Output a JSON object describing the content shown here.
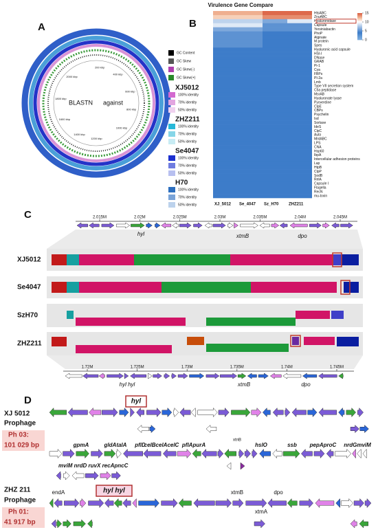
{
  "panels": {
    "a": "A",
    "b": "B",
    "c": "C",
    "d": "D"
  },
  "panel_a": {
    "center_labels": [
      "BLASTN",
      "against"
    ],
    "ring_labels": [
      "2000 kbp",
      "200 kbp",
      "400 kbp",
      "1800 kbp",
      "1600 kbp",
      "600 kbp",
      "800 kbp",
      "1400 kbp",
      "1200 kbp",
      "1000 kbp"
    ],
    "legend": {
      "gc": [
        "GC Content",
        "GC Skew",
        "GC Skew(-)",
        "GC Skew(+)"
      ],
      "strains": [
        {
          "name": "XJ5012",
          "levels": [
            "100% identity",
            "70% identity",
            "50% identity"
          ],
          "colors": [
            "#d36ad0",
            "#e2a6e0",
            "#f0d2ef"
          ]
        },
        {
          "name": "ZHZ211",
          "levels": [
            "100% identity",
            "70% identity",
            "50% identity"
          ],
          "colors": [
            "#28b8d8",
            "#86d6e8",
            "#c8ecf4"
          ]
        },
        {
          "name": "Se4047",
          "levels": [
            "100% identity",
            "70% identity",
            "50% identity"
          ],
          "colors": [
            "#1b2fcf",
            "#6f7ce0",
            "#b8c0f0"
          ]
        },
        {
          "name": "H70",
          "levels": [
            "100% identity",
            "70% identity",
            "50% identity"
          ],
          "colors": [
            "#2d6fbf",
            "#7aa4d8",
            "#bcd2ec"
          ]
        }
      ]
    }
  },
  "panel_b": {
    "title": "Virulence Gene Compare",
    "columns": [
      "XJ_5012",
      "Se_4047",
      "Sz_H70",
      "ZHZ211"
    ],
    "genes": [
      "HtsABC",
      "ZnuABC",
      "Hyaluronidase",
      "Capsule",
      "Yersiniabactin",
      "PhoP",
      "Alginate",
      "M protein",
      "Spes",
      "Hyaluronic acid capsule",
      "HSI-I",
      "DNase",
      "GRAB",
      "Pi-1",
      "Cya",
      "FBPs",
      "PI-2a",
      "Lmb",
      "Type VII secretion system",
      "C5a peptidase",
      "MsrAB",
      "Hyaluronate lyase",
      "Pyoverdine",
      "ClpE",
      "CBPs",
      "Psychelin",
      "Isd",
      "Sortase",
      "IdeS",
      "ClpC",
      "Auto",
      "MntABC",
      "LPS",
      "CNA",
      "Hsp60",
      "IbpA",
      "Intercellular adhesion proteins",
      "Lap",
      "HtpB",
      "ClpP",
      "SodB",
      "RelA",
      "Capsule I",
      "Flagella",
      "RecN",
      "mu-toxin"
    ],
    "values": [
      [
        12.5,
        12.5,
        14.5,
        14.5
      ],
      [
        11.5,
        11.5,
        13.5,
        13.5
      ],
      [
        8,
        8,
        6,
        9
      ],
      [
        9,
        9,
        5,
        5
      ],
      [
        6,
        6,
        5,
        5
      ],
      [
        5,
        5,
        4,
        4
      ],
      [
        5,
        5,
        4,
        4
      ],
      [
        5,
        5,
        4,
        4
      ],
      [
        5,
        5,
        4,
        4
      ],
      [
        4,
        4,
        4,
        4
      ],
      [
        4,
        4,
        4,
        4
      ],
      [
        4,
        4,
        4,
        4
      ],
      [
        4,
        4,
        4,
        4
      ],
      [
        4,
        4,
        4,
        4
      ],
      [
        4,
        4,
        4,
        4
      ],
      [
        4,
        4,
        4,
        4
      ],
      [
        4,
        4,
        4,
        4
      ],
      [
        4,
        4,
        4,
        4
      ],
      [
        4,
        4,
        4,
        4
      ],
      [
        4,
        4,
        4,
        4
      ],
      [
        4,
        4,
        4,
        4
      ],
      [
        4,
        4,
        4,
        4
      ],
      [
        4,
        4,
        4,
        4
      ],
      [
        4,
        4,
        4,
        4
      ],
      [
        4,
        4,
        4,
        4
      ],
      [
        4,
        4,
        4,
        4
      ],
      [
        4,
        4,
        4,
        4
      ],
      [
        4,
        4,
        4,
        4
      ],
      [
        4,
        4,
        4,
        4
      ],
      [
        4,
        4,
        4,
        4
      ],
      [
        4,
        4,
        4,
        4
      ],
      [
        4,
        4,
        4,
        4
      ],
      [
        4,
        4,
        4,
        4
      ],
      [
        4,
        4,
        4,
        4
      ],
      [
        4,
        4,
        4,
        4
      ],
      [
        4,
        4,
        4,
        4
      ],
      [
        4,
        4,
        4,
        4
      ],
      [
        4,
        4,
        4,
        4
      ],
      [
        4,
        4,
        4,
        4
      ],
      [
        4,
        4,
        4,
        4
      ],
      [
        4,
        4,
        4,
        4
      ],
      [
        4,
        4,
        4,
        4
      ],
      [
        4,
        4,
        4,
        4
      ],
      [
        4,
        4,
        4,
        4
      ],
      [
        4,
        4,
        4,
        4
      ],
      [
        4,
        4,
        4,
        4
      ]
    ],
    "colorscale": [
      [
        0,
        "#7fb0e0"
      ],
      [
        4,
        "#3d7cc9"
      ],
      [
        10,
        "#ffffff"
      ],
      [
        12,
        "#f4c0a0"
      ],
      [
        15,
        "#d8583a"
      ]
    ],
    "clim": [
      0,
      15
    ],
    "cticks": [
      15,
      10,
      5,
      0
    ]
  },
  "panel_c": {
    "top_ticks": [
      "2.015M",
      "2.02M",
      "2.025M",
      "2.03M",
      "2.035M",
      "2.04M",
      "2.045M"
    ],
    "top_genes": [
      "hyl",
      "xtmB",
      "dpo"
    ],
    "strains": [
      "XJ5012",
      "Se4047",
      "SzH70",
      "ZHZ211"
    ],
    "bottom_ticks": [
      "1.72M",
      "1.725M",
      "1.73M",
      "1.735M",
      "1.74M",
      "1.745M"
    ],
    "bottom_genes": [
      "hyl hyl",
      "xtmB",
      "dpo"
    ]
  },
  "panel_d": {
    "xj": {
      "strain": "XJ 5012",
      "kind": "Prophage",
      "ph": "Ph 03:",
      "size": "101 029 bp",
      "hyl": "hyl",
      "xtnB": "xtnB",
      "genes": [
        "gpmA",
        "gldAtalA",
        "pflD",
        "celBcelAcelC",
        "pflApurA",
        "hslO",
        "ssb",
        "pepAproC",
        "nrdGmviM"
      ],
      "genes2": "mviM nrdD ruvX recApncC"
    },
    "zhz": {
      "strain": "ZHZ 211",
      "kind": "Prophage",
      "ph": "Ph 01:",
      "size": "41 917 bp",
      "endA": "endA",
      "hyl": "hyl hyl",
      "xtmB": "xtmB",
      "dpo": "dpo",
      "xtmA": "xtmA"
    }
  }
}
